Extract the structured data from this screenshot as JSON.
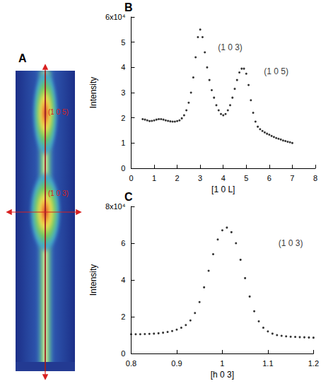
{
  "chart_data": [
    {
      "panel": "A",
      "type": "image",
      "annotations": [
        {
          "text": "(1 0 5)",
          "color": "#d82020"
        },
        {
          "text": "(1 0 3)",
          "color": "#d82020"
        }
      ]
    },
    {
      "panel": "B",
      "type": "scatter",
      "marker": "circle",
      "grid": false,
      "x_label": "[1 0 L]",
      "y_label": "Intensity",
      "xlim": [
        0,
        8
      ],
      "xticks": [
        0,
        1,
        2,
        3,
        4,
        5,
        6,
        7,
        8
      ],
      "ylim": [
        0,
        6
      ],
      "yticks": [
        0,
        1,
        2,
        3,
        4,
        5,
        {
          "value": 6,
          "label": "6x10⁴"
        }
      ],
      "series": [
        {
          "color": "#000000",
          "x": [
            0.5,
            0.6,
            0.7,
            0.8,
            0.9,
            1.0,
            1.1,
            1.2,
            1.3,
            1.4,
            1.5,
            1.6,
            1.7,
            1.8,
            1.9,
            2.0,
            2.1,
            2.2,
            2.3,
            2.4,
            2.5,
            2.6,
            2.7,
            2.8,
            2.9,
            3.0,
            3.1,
            3.2,
            3.3,
            3.4,
            3.5,
            3.6,
            3.7,
            3.8,
            3.9,
            4.0,
            4.1,
            4.2,
            4.3,
            4.4,
            4.5,
            4.6,
            4.7,
            4.8,
            4.9,
            5.0,
            5.1,
            5.2,
            5.3,
            5.4,
            5.5,
            5.6,
            5.7,
            5.8,
            5.9,
            6.0,
            6.1,
            6.2,
            6.3,
            6.4,
            6.5,
            6.6,
            6.7,
            6.8,
            6.9,
            7.0
          ],
          "values": [
            1.95,
            1.93,
            1.9,
            1.87,
            1.88,
            1.9,
            1.93,
            1.95,
            1.95,
            1.93,
            1.9,
            1.88,
            1.86,
            1.85,
            1.85,
            1.87,
            1.9,
            1.98,
            2.1,
            2.3,
            2.6,
            3.0,
            3.6,
            4.4,
            5.2,
            5.5,
            5.2,
            4.6,
            4.0,
            3.5,
            3.1,
            2.8,
            2.5,
            2.3,
            2.15,
            2.1,
            2.15,
            2.3,
            2.5,
            2.8,
            3.15,
            3.5,
            3.8,
            3.95,
            3.95,
            3.75,
            3.3,
            2.7,
            2.2,
            1.85,
            1.65,
            1.55,
            1.48,
            1.42,
            1.37,
            1.33,
            1.28,
            1.24,
            1.2,
            1.17,
            1.14,
            1.1,
            1.08,
            1.05,
            1.03,
            1.0
          ]
        }
      ],
      "annotations": [
        {
          "text": "(1 0 3)",
          "x": 4.3,
          "y": 4.8
        },
        {
          "text": "(1 0 5)",
          "x": 6.3,
          "y": 3.85
        }
      ]
    },
    {
      "panel": "C",
      "type": "scatter",
      "marker": "circle",
      "grid": false,
      "x_label": "[h 0 3]",
      "y_label": "Intensity",
      "xlim": [
        0.8,
        1.2
      ],
      "xticks": [
        0.8,
        0.9,
        1,
        1.1,
        1.2
      ],
      "ylim": [
        0,
        8
      ],
      "yticks": [
        0,
        2,
        4,
        6,
        {
          "value": 8,
          "label": "8x10⁴"
        }
      ],
      "series": [
        {
          "color": "#000000",
          "x": [
            0.8,
            0.81,
            0.82,
            0.83,
            0.84,
            0.85,
            0.86,
            0.87,
            0.88,
            0.89,
            0.9,
            0.91,
            0.92,
            0.93,
            0.94,
            0.95,
            0.96,
            0.97,
            0.98,
            0.99,
            1.0,
            1.01,
            1.02,
            1.03,
            1.04,
            1.05,
            1.06,
            1.07,
            1.08,
            1.09,
            1.1,
            1.11,
            1.12,
            1.13,
            1.14,
            1.15,
            1.16,
            1.17,
            1.18,
            1.19,
            1.2
          ],
          "values": [
            1.05,
            1.05,
            1.05,
            1.06,
            1.07,
            1.08,
            1.1,
            1.13,
            1.17,
            1.22,
            1.3,
            1.4,
            1.55,
            1.8,
            2.2,
            2.8,
            3.6,
            4.5,
            5.4,
            6.2,
            6.7,
            6.85,
            6.6,
            6.0,
            5.1,
            4.1,
            3.1,
            2.3,
            1.75,
            1.4,
            1.2,
            1.08,
            1.0,
            0.96,
            0.93,
            0.91,
            0.9,
            0.89,
            0.88,
            0.87,
            0.86
          ]
        }
      ],
      "annotations": [
        {
          "text": "(1 0 3)",
          "x": 1.15,
          "y": 6.0
        }
      ]
    }
  ]
}
